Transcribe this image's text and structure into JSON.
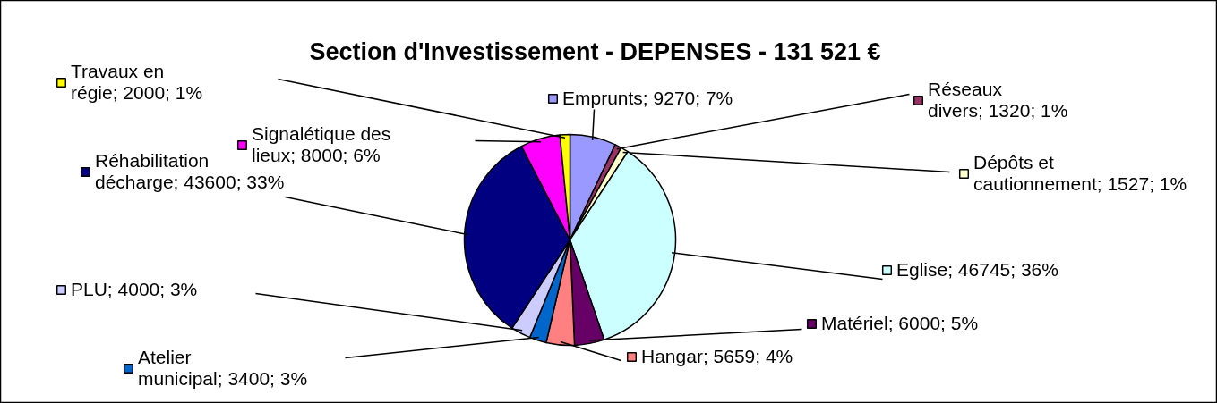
{
  "chart_data": {
    "type": "pie",
    "title": "Section d'Investissement - DEPENSES - 131 521 €",
    "categories": [
      "Emprunts",
      "Réseaux divers",
      "Dépôts et cautionnement",
      "Eglise",
      "Matériel",
      "Hangar",
      "Atelier municipal",
      "PLU",
      "Réhabilitation décharge",
      "Signalétique des lieux",
      "Travaux en régie"
    ],
    "values": [
      9270,
      1320,
      1527,
      46745,
      6000,
      5659,
      3400,
      4000,
      43600,
      8000,
      2000
    ],
    "colors": [
      "#9999ff",
      "#993366",
      "#ffffcc",
      "#ccffff",
      "#660066",
      "#ff8080",
      "#0066cc",
      "#ccccff",
      "#000080",
      "#ff00ff",
      "#ffff00"
    ],
    "value_labels": [
      "9270; 7%",
      "1320; 1%",
      "1527; 1%",
      "46745; 36%",
      "6000; 5%",
      "5659; 4%",
      "3400; 3%",
      "4000; 3%",
      "43600; 33%",
      "8000; 6%",
      "2000; 1%"
    ],
    "legend": "right"
  }
}
